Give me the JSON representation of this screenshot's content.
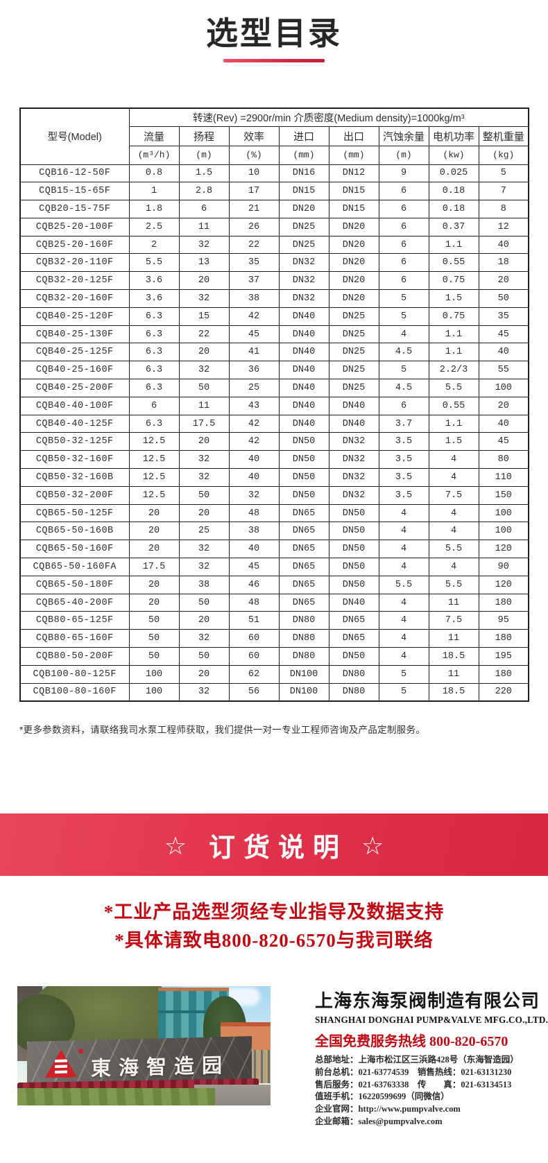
{
  "page": {
    "title": "选型目录"
  },
  "table": {
    "model_header": "型号(Model)",
    "condition_header": "转速(Rev) =2900r/min  介质密度(Medium density)=1000kg/m³",
    "columns": [
      {
        "label": "流量",
        "unit": "(m³/h)"
      },
      {
        "label": "扬程",
        "unit": "(m)"
      },
      {
        "label": "效率",
        "unit": "(%)"
      },
      {
        "label": "进口",
        "unit": "(mm)"
      },
      {
        "label": "出口",
        "unit": "(mm)"
      },
      {
        "label": "汽蚀余量",
        "unit": "(m)"
      },
      {
        "label": "电机功率",
        "unit": "(kw)"
      },
      {
        "label": "整机重量",
        "unit": "(kg)"
      }
    ],
    "rows": [
      [
        "CQB16-12-50F",
        "0.8",
        "1.5",
        "10",
        "DN16",
        "DN12",
        "9",
        "0.025",
        "5"
      ],
      [
        "CQB15-15-65F",
        "1",
        "2.8",
        "17",
        "DN15",
        "DN15",
        "6",
        "0.18",
        "7"
      ],
      [
        "CQB20-15-75F",
        "1.8",
        "6",
        "21",
        "DN20",
        "DN15",
        "6",
        "0.18",
        "8"
      ],
      [
        "CQB25-20-100F",
        "2.5",
        "11",
        "26",
        "DN25",
        "DN20",
        "6",
        "0.37",
        "12"
      ],
      [
        "CQB25-20-160F",
        "2",
        "32",
        "22",
        "DN25",
        "DN20",
        "6",
        "1.1",
        "40"
      ],
      [
        "CQB32-20-110F",
        "5.5",
        "13",
        "35",
        "DN32",
        "DN20",
        "6",
        "0.55",
        "18"
      ],
      [
        "CQB32-20-125F",
        "3.6",
        "20",
        "37",
        "DN32",
        "DN20",
        "6",
        "0.75",
        "20"
      ],
      [
        "CQB32-20-160F",
        "3.6",
        "32",
        "38",
        "DN32",
        "DN20",
        "5",
        "1.5",
        "50"
      ],
      [
        "CQB40-25-120F",
        "6.3",
        "15",
        "42",
        "DN40",
        "DN25",
        "5",
        "0.75",
        "35"
      ],
      [
        "CQB40-25-130F",
        "6.3",
        "22",
        "45",
        "DN40",
        "DN25",
        "4",
        "1.1",
        "45"
      ],
      [
        "CQB40-25-125F",
        "6.3",
        "20",
        "41",
        "DN40",
        "DN25",
        "4.5",
        "1.1",
        "40"
      ],
      [
        "CQB40-25-160F",
        "6.3",
        "32",
        "36",
        "DN40",
        "DN25",
        "5",
        "2.2/3",
        "55"
      ],
      [
        "CQB40-25-200F",
        "6.3",
        "50",
        "25",
        "DN40",
        "DN25",
        "4.5",
        "5.5",
        "100"
      ],
      [
        "CQB40-40-100F",
        "6",
        "11",
        "43",
        "DN40",
        "DN40",
        "6",
        "0.55",
        "20"
      ],
      [
        "CQB40-40-125F",
        "6.3",
        "17.5",
        "42",
        "DN40",
        "DN40",
        "3.7",
        "1.1",
        "40"
      ],
      [
        "CQB50-32-125F",
        "12.5",
        "20",
        "42",
        "DN50",
        "DN32",
        "3.5",
        "1.5",
        "45"
      ],
      [
        "CQB50-32-160F",
        "12.5",
        "32",
        "40",
        "DN50",
        "DN32",
        "3.5",
        "4",
        "80"
      ],
      [
        "CQB50-32-160B",
        "12.5",
        "32",
        "40",
        "DN50",
        "DN32",
        "3.5",
        "4",
        "110"
      ],
      [
        "CQB50-32-200F",
        "12.5",
        "50",
        "32",
        "DN50",
        "DN32",
        "3.5",
        "7.5",
        "150"
      ],
      [
        "CQB65-50-125F",
        "20",
        "20",
        "48",
        "DN65",
        "DN50",
        "4",
        "4",
        "100"
      ],
      [
        "CQB65-50-160B",
        "20",
        "25",
        "38",
        "DN65",
        "DN50",
        "4",
        "4",
        "100"
      ],
      [
        "CQB65-50-160F",
        "20",
        "32",
        "40",
        "DN65",
        "DN50",
        "4",
        "5.5",
        "120"
      ],
      [
        "CQB65-50-160FA",
        "17.5",
        "32",
        "45",
        "DN65",
        "DN50",
        "4",
        "4",
        "90"
      ],
      [
        "CQB65-50-180F",
        "20",
        "38",
        "46",
        "DN65",
        "DN50",
        "5.5",
        "5.5",
        "120"
      ],
      [
        "CQB65-40-200F",
        "20",
        "50",
        "48",
        "DN65",
        "DN40",
        "4",
        "11",
        "180"
      ],
      [
        "CQB80-65-125F",
        "50",
        "20",
        "51",
        "DN80",
        "DN65",
        "4",
        "7.5",
        "95"
      ],
      [
        "CQB80-65-160F",
        "50",
        "32",
        "60",
        "DN80",
        "DN65",
        "4",
        "11",
        "180"
      ],
      [
        "CQB80-50-200F",
        "50",
        "50",
        "60",
        "DN80",
        "DN50",
        "4",
        "18.5",
        "195"
      ],
      [
        "CQB100-80-125F",
        "100",
        "20",
        "62",
        "DN100",
        "DN80",
        "5",
        "11",
        "180"
      ],
      [
        "CQB100-80-160F",
        "100",
        "32",
        "56",
        "DN100",
        "DN80",
        "5",
        "18.5",
        "220"
      ]
    ]
  },
  "footnote": "*更多参数资料，请联络我司水泵工程师获取，我们提供一对一专业工程师咨询及产品定制服务。",
  "order_banner": {
    "star": "☆",
    "text": "订货说明"
  },
  "order_notes": [
    "*工业产品选型须经专业指导及数据支持",
    "*具体请致电800-820-6570与我司联络"
  ],
  "company": {
    "photo_sign": "東海智造园",
    "name_cn": "上海东海泵阀制造有限公司",
    "name_en": "SHANGHAI DONGHAI PUMP&VALVE MFG.CO.,LTD.",
    "hotline": "全国免费服务热线 800-820-6570",
    "details": [
      "总部地址：上海市松江区三浜路428号（东海智造园）",
      "前台总机：021-63774539　销售热线：021-63131230",
      "售后服务：021-63763338　传　　真：021-63134513",
      "值班手机：16220599699（同微信）",
      "企业官网：http://www.pumpvalve.com",
      "企业邮箱：sales@pumpvalve.com"
    ]
  },
  "colors": {
    "accent_red": "#c40812",
    "banner_red": "#e0304a",
    "underline_red": "#d62844",
    "logo_red": "#cf2127"
  }
}
